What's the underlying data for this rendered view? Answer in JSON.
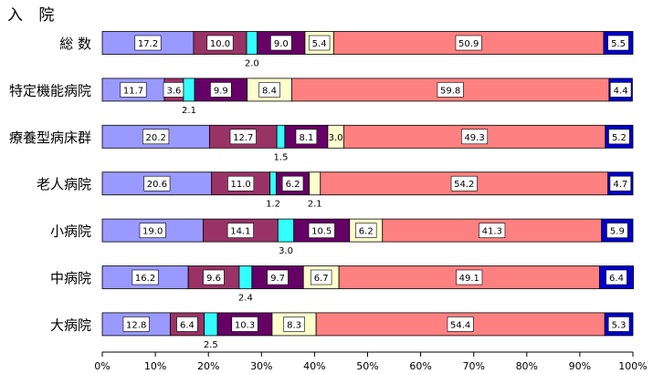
{
  "chart_data": {
    "type": "bar",
    "stacked": true,
    "orientation": "horizontal",
    "title": "入 院",
    "categories": [
      "総 数",
      "特定機能病院",
      "療養型病床群",
      "老人病院",
      "小病院",
      "中病院",
      "大病院"
    ],
    "series": [
      {
        "name": "segment-1",
        "color": "#9999ff",
        "values": [
          17.2,
          11.7,
          20.2,
          20.6,
          19.0,
          16.2,
          12.8
        ]
      },
      {
        "name": "segment-2",
        "color": "#993366",
        "values": [
          10.0,
          3.6,
          12.7,
          11.0,
          14.1,
          9.6,
          6.4
        ]
      },
      {
        "name": "segment-3",
        "color": "#33ffff",
        "values": [
          2.0,
          2.1,
          1.5,
          1.2,
          3.0,
          2.4,
          2.5
        ]
      },
      {
        "name": "segment-4",
        "color": "#660066",
        "values": [
          9.0,
          9.9,
          8.1,
          6.2,
          10.5,
          9.7,
          10.3
        ]
      },
      {
        "name": "segment-5",
        "color": "#ffffcc",
        "values": [
          5.4,
          8.4,
          3.0,
          2.1,
          6.2,
          6.7,
          8.3
        ]
      },
      {
        "name": "segment-6",
        "color": "#ff8080",
        "values": [
          50.9,
          59.8,
          49.3,
          54.2,
          41.3,
          49.1,
          54.4
        ]
      },
      {
        "name": "segment-7",
        "color": "#0000cc",
        "values": [
          5.5,
          4.4,
          5.2,
          4.7,
          5.9,
          6.4,
          5.3
        ]
      }
    ],
    "external_labels": [
      {
        "category": 0,
        "series": 2,
        "text": "2.0"
      },
      {
        "category": 1,
        "series": 2,
        "text": "2.1"
      },
      {
        "category": 2,
        "series": 2,
        "text": "1.5"
      },
      {
        "category": 3,
        "series": 2,
        "text": "1.2"
      },
      {
        "category": 3,
        "series": 4,
        "text": "2.1"
      },
      {
        "category": 4,
        "series": 2,
        "text": "3.0"
      },
      {
        "category": 5,
        "series": 2,
        "text": "2.4"
      },
      {
        "category": 6,
        "series": 2,
        "text": "2.5"
      }
    ],
    "xlim": [
      0,
      100
    ],
    "xticks": [
      "0%",
      "10%",
      "20%",
      "30%",
      "40%",
      "50%",
      "60%",
      "70%",
      "80%",
      "90%",
      "100%"
    ]
  }
}
